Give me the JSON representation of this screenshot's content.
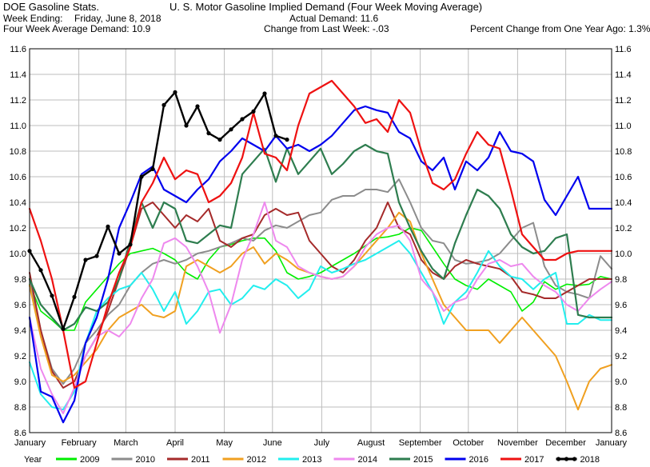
{
  "header": {
    "left_title": "DOE Gasoline Stats.",
    "week_ending_label": "Week Ending:",
    "week_ending_value": "Friday, June 8, 2018",
    "four_week_label": "Four Week Average Demand: 10.9",
    "center_title": "U. S. Motor Gasoline Implied Demand (Four Week Moving Average)",
    "actual_demand": "Actual Demand: 11.6",
    "change_last_week": "Change from Last Week: -.03",
    "pct_change": "Percent Change from One Year Ago:  1.3%"
  },
  "chart_data": {
    "type": "line",
    "title": "U. S. Motor Gasoline Implied Demand (Four Week Moving Average)",
    "ylim": [
      8.6,
      11.6
    ],
    "yticks": [
      "11.6",
      "11.4",
      "11.2",
      "11.0",
      "10.8",
      "10.6",
      "10.4",
      "10.2",
      "10.0",
      "9.8",
      "9.6",
      "9.4",
      "9.2",
      "9.0",
      "8.8",
      "8.6"
    ],
    "xlim": [
      1,
      53
    ],
    "xticks": [
      {
        "week": 1,
        "label": "January"
      },
      {
        "week": 5.4,
        "label": "February"
      },
      {
        "week": 9.6,
        "label": "March"
      },
      {
        "week": 14,
        "label": "April"
      },
      {
        "week": 18.4,
        "label": "May"
      },
      {
        "week": 22.7,
        "label": "June"
      },
      {
        "week": 27.1,
        "label": "July"
      },
      {
        "week": 31.5,
        "label": "August"
      },
      {
        "week": 35.9,
        "label": "September"
      },
      {
        "week": 40.2,
        "label": "October"
      },
      {
        "week": 44.6,
        "label": "November"
      },
      {
        "week": 48.9,
        "label": "December"
      },
      {
        "week": 53,
        "label": "January"
      }
    ],
    "legend_title": "Year",
    "legend_position": "bottom",
    "grid": true,
    "series": [
      {
        "name": "2009",
        "color": "#00ee00",
        "width": 1.6,
        "markers": false,
        "values": [
          9.76,
          9.55,
          9.48,
          9.4,
          9.4,
          9.62,
          9.72,
          9.82,
          9.92,
          10.0,
          10.02,
          10.04,
          10.0,
          9.95,
          9.85,
          9.8,
          9.95,
          10.05,
          10.07,
          10.1,
          10.12,
          10.12,
          10.02,
          9.85,
          9.8,
          9.82,
          9.85,
          9.9,
          9.95,
          10.0,
          10.06,
          10.12,
          10.13,
          10.15,
          10.2,
          10.18,
          10.05,
          9.92,
          9.8,
          9.75,
          9.72,
          9.8,
          9.75,
          9.7,
          9.55,
          9.62,
          9.78,
          9.72,
          9.76,
          9.75,
          9.76,
          9.82,
          9.8
        ]
      },
      {
        "name": "2010",
        "color": "#8c8c8c",
        "width": 2.0,
        "markers": false,
        "values": [
          9.8,
          9.4,
          9.1,
          8.98,
          9.1,
          9.3,
          9.4,
          9.52,
          9.6,
          9.75,
          9.85,
          9.92,
          9.95,
          9.92,
          9.95,
          10.0,
          10.02,
          10.05,
          10.08,
          10.12,
          10.1,
          10.18,
          10.22,
          10.2,
          10.25,
          10.3,
          10.32,
          10.42,
          10.45,
          10.45,
          10.5,
          10.5,
          10.48,
          10.58,
          10.4,
          10.2,
          10.1,
          10.08,
          9.95,
          9.92,
          9.93,
          9.95,
          10.0,
          10.1,
          10.2,
          10.24,
          9.9,
          9.75,
          9.7,
          9.68,
          9.65,
          9.98,
          9.88
        ]
      },
      {
        "name": "2011",
        "color": "#a52a2a",
        "width": 2.0,
        "markers": false,
        "values": [
          9.85,
          9.4,
          9.08,
          8.95,
          9.0,
          9.2,
          9.35,
          9.55,
          9.8,
          10.05,
          10.35,
          10.4,
          10.3,
          10.2,
          10.3,
          10.25,
          10.35,
          10.1,
          10.05,
          10.12,
          10.15,
          10.3,
          10.35,
          10.3,
          10.32,
          10.1,
          10.0,
          9.9,
          9.85,
          9.95,
          10.1,
          10.2,
          10.4,
          10.2,
          10.15,
          9.95,
          9.85,
          9.8,
          9.9,
          9.95,
          9.92,
          9.9,
          9.88,
          9.82,
          9.7,
          9.68,
          9.65,
          9.65,
          9.7,
          9.75,
          9.8,
          9.8,
          9.8
        ]
      },
      {
        "name": "2012",
        "color": "#f0a020",
        "width": 2.0,
        "markers": false,
        "values": [
          9.75,
          9.35,
          9.05,
          9.0,
          9.05,
          9.15,
          9.25,
          9.4,
          9.5,
          9.55,
          9.6,
          9.52,
          9.5,
          9.55,
          9.9,
          9.95,
          9.9,
          9.85,
          9.9,
          10.0,
          10.05,
          9.92,
          10.0,
          9.95,
          9.88,
          9.85,
          9.82,
          9.8,
          9.82,
          9.9,
          10.0,
          10.1,
          10.2,
          10.32,
          10.25,
          10.0,
          9.8,
          9.6,
          9.5,
          9.4,
          9.4,
          9.4,
          9.3,
          9.4,
          9.5,
          9.4,
          9.3,
          9.2,
          9.0,
          8.78,
          9.0,
          9.1,
          9.13
        ]
      },
      {
        "name": "2013",
        "color": "#22eeee",
        "width": 2.0,
        "markers": false,
        "values": [
          9.15,
          8.9,
          8.8,
          8.78,
          8.92,
          9.3,
          9.55,
          9.65,
          9.72,
          9.75,
          9.85,
          9.72,
          9.55,
          9.7,
          9.45,
          9.55,
          9.7,
          9.72,
          9.6,
          9.65,
          9.75,
          9.72,
          9.8,
          9.75,
          9.65,
          9.72,
          9.9,
          9.85,
          9.88,
          9.92,
          9.95,
          10.0,
          10.05,
          10.1,
          10.0,
          9.85,
          9.7,
          9.45,
          9.62,
          9.7,
          9.85,
          10.02,
          9.9,
          9.82,
          9.8,
          9.72,
          9.8,
          9.85,
          9.45,
          9.45,
          9.52,
          9.48,
          9.48
        ]
      },
      {
        "name": "2014",
        "color": "#ee88ee",
        "width": 2.0,
        "markers": false,
        "values": [
          9.5,
          9.1,
          8.9,
          8.75,
          8.95,
          9.2,
          9.35,
          9.4,
          9.35,
          9.45,
          9.65,
          9.8,
          10.08,
          10.12,
          10.05,
          9.9,
          9.7,
          9.38,
          9.6,
          9.95,
          10.15,
          10.4,
          10.1,
          10.05,
          9.9,
          9.85,
          9.82,
          9.8,
          9.82,
          9.9,
          10.05,
          10.15,
          10.2,
          10.22,
          10.1,
          9.8,
          9.7,
          9.55,
          9.62,
          9.65,
          9.8,
          9.92,
          9.95,
          9.9,
          9.92,
          9.82,
          9.75,
          9.7,
          9.6,
          9.55,
          9.65,
          9.72,
          9.78
        ]
      },
      {
        "name": "2015",
        "color": "#2e7d4f",
        "width": 2.2,
        "markers": false,
        "values": [
          9.8,
          9.6,
          9.5,
          9.4,
          9.45,
          9.58,
          9.55,
          9.62,
          9.8,
          10.1,
          10.4,
          10.2,
          10.4,
          10.35,
          10.1,
          10.08,
          10.15,
          10.22,
          10.2,
          10.62,
          10.72,
          10.82,
          10.56,
          10.82,
          10.62,
          10.72,
          10.82,
          10.62,
          10.7,
          10.8,
          10.85,
          10.8,
          10.78,
          10.4,
          10.2,
          10.02,
          9.88,
          9.8,
          10.08,
          10.3,
          10.5,
          10.45,
          10.35,
          10.15,
          10.05,
          10.0,
          10.02,
          10.12,
          10.15,
          9.52,
          9.5,
          9.5,
          9.5
        ]
      },
      {
        "name": "2016",
        "color": "#0000ee",
        "width": 2.2,
        "markers": false,
        "values": [
          9.5,
          8.92,
          8.88,
          8.68,
          8.85,
          9.3,
          9.5,
          9.8,
          10.2,
          10.4,
          10.62,
          10.68,
          10.5,
          10.45,
          10.4,
          10.5,
          10.58,
          10.72,
          10.8,
          10.9,
          10.85,
          10.8,
          10.92,
          10.82,
          10.85,
          10.8,
          10.85,
          10.92,
          11.02,
          11.12,
          11.15,
          11.12,
          11.1,
          10.95,
          10.9,
          10.72,
          10.65,
          10.75,
          10.5,
          10.72,
          10.65,
          10.75,
          10.95,
          10.8,
          10.78,
          10.72,
          10.42,
          10.3,
          10.45,
          10.6,
          10.35,
          10.35,
          10.35
        ]
      },
      {
        "name": "2017",
        "color": "#ee1111",
        "width": 2.2,
        "markers": false,
        "values": [
          10.35,
          10.1,
          9.8,
          9.4,
          8.95,
          9.0,
          9.3,
          9.6,
          9.85,
          10.05,
          10.4,
          10.55,
          10.75,
          10.58,
          10.65,
          10.62,
          10.4,
          10.45,
          10.55,
          10.75,
          11.1,
          10.78,
          10.75,
          10.65,
          11.0,
          11.25,
          11.3,
          11.35,
          11.25,
          11.15,
          11.02,
          11.05,
          10.95,
          11.2,
          11.1,
          10.8,
          10.55,
          10.5,
          10.58,
          10.78,
          10.95,
          10.85,
          10.82,
          10.5,
          10.15,
          10.05,
          9.95,
          9.95,
          10.0,
          10.02,
          10.02,
          10.02,
          10.02
        ]
      },
      {
        "name": "2018",
        "color": "#000000",
        "width": 2.4,
        "markers": true,
        "values": [
          10.02,
          9.87,
          9.67,
          9.41,
          9.66,
          9.95,
          9.98,
          10.21,
          10.0,
          10.07,
          10.6,
          10.66,
          11.16,
          11.26,
          11.0,
          11.15,
          10.94,
          10.89,
          10.97,
          11.05,
          11.11,
          11.25,
          10.92,
          10.89
        ]
      }
    ]
  }
}
